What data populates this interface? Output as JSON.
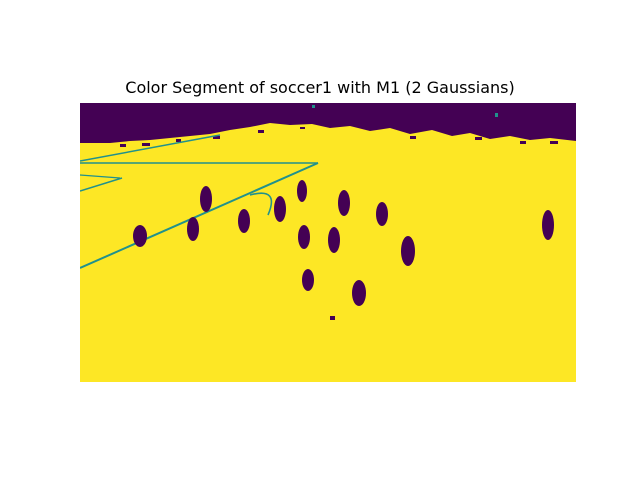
{
  "figure": {
    "title": "Color Segment of soccer1 with M1 (2 Gaussians)"
  },
  "colors": {
    "foreground": "#fde725",
    "background": "#440154",
    "edge": "#21918c"
  }
}
